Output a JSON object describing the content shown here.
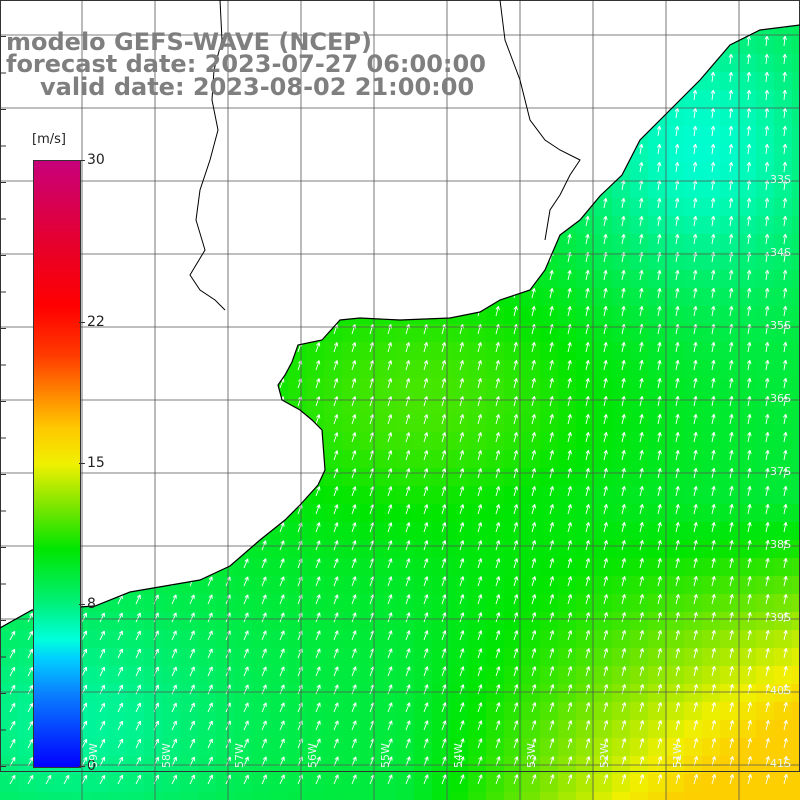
{
  "title": {
    "line1": "modelo GEFS-WAVE (NCEP)",
    "line2": "forecast date: 2023-07-27 06:00:00",
    "line3": "valid date: 2023-08-02 21:00:00"
  },
  "colorbar": {
    "unit": "[m/s]",
    "ticks": [
      "30",
      "22",
      "15",
      "8",
      "0"
    ],
    "tick_values": [
      30,
      22,
      15,
      8,
      0
    ]
  },
  "map": {
    "variable": "wind speed and direction",
    "lat_labels": [
      "33S",
      "34S",
      "35S",
      "36S",
      "37S",
      "38S",
      "39S",
      "40S",
      "41S"
    ],
    "lon_labels": [
      "59W",
      "58W",
      "57W",
      "56W",
      "55W",
      "54W",
      "53W",
      "52W",
      "51W"
    ],
    "colors": {
      "land": "#ffffff",
      "coast": "#000000",
      "grid": "#555555",
      "arrows": "#ffffff",
      "title_text": "#7f7f7f"
    }
  }
}
